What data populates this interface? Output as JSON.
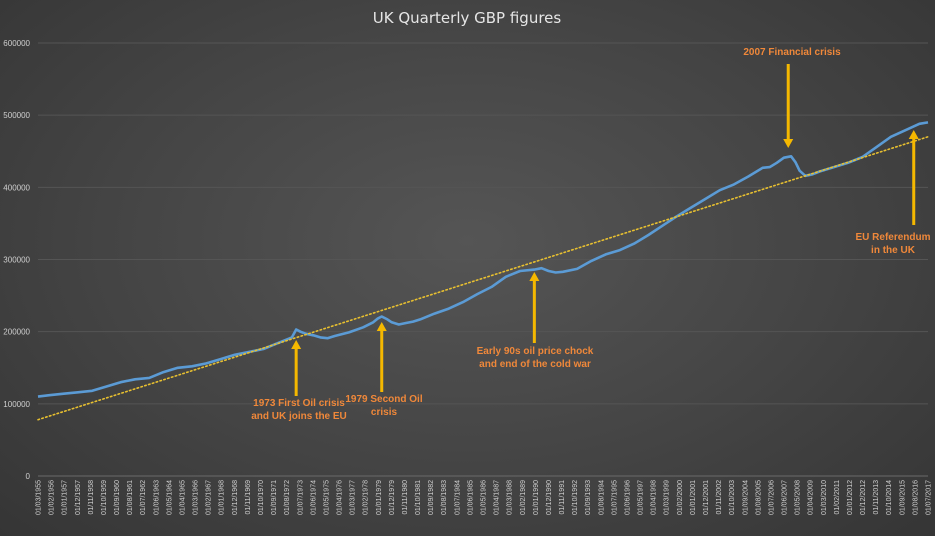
{
  "chart_data": {
    "type": "line",
    "title": "UK Quarterly GBP figures",
    "xlabel": "",
    "ylabel": "",
    "ylim": [
      0,
      600000
    ],
    "yticks": [
      0,
      100000,
      200000,
      300000,
      400000,
      500000,
      600000
    ],
    "grid": "horizontal",
    "legend": "none",
    "x_tick_labels": [
      "01/03/1955",
      "01/02/1956",
      "01/01/1957",
      "01/12/1957",
      "01/11/1958",
      "01/10/1959",
      "01/09/1960",
      "01/08/1961",
      "01/07/1962",
      "01/06/1963",
      "01/05/1964",
      "01/04/1965",
      "01/03/1966",
      "01/02/1967",
      "01/01/1968",
      "01/12/1968",
      "01/11/1969",
      "01/10/1970",
      "01/09/1971",
      "01/08/1972",
      "01/07/1973",
      "01/06/1974",
      "01/05/1975",
      "01/04/1976",
      "01/03/1977",
      "01/02/1978",
      "01/01/1979",
      "01/12/1979",
      "01/11/1980",
      "01/10/1981",
      "01/09/1982",
      "01/08/1983",
      "01/07/1984",
      "01/06/1985",
      "01/05/1986",
      "01/04/1987",
      "01/03/1988",
      "01/02/1989",
      "01/01/1990",
      "01/12/1990",
      "01/11/1991",
      "01/10/1992",
      "01/09/1993",
      "01/08/1994",
      "01/07/1995",
      "01/06/1996",
      "01/05/1997",
      "01/04/1998",
      "01/03/1999",
      "01/02/2000",
      "01/01/2001",
      "01/12/2001",
      "01/11/2002",
      "01/10/2003",
      "01/09/2004",
      "01/08/2005",
      "01/07/2006",
      "01/06/2007",
      "01/05/2008",
      "01/04/2009",
      "01/03/2010",
      "01/02/2011",
      "01/01/2012",
      "01/12/2012",
      "01/11/2013",
      "01/10/2014",
      "01/09/2015",
      "01/08/2016",
      "01/07/2017"
    ],
    "series": [
      {
        "color": "#5b9bd5",
        "x": [
          1955.2,
          1956.0,
          1957.0,
          1958.0,
          1959.0,
          1960.0,
          1961.0,
          1962.0,
          1963.0,
          1964.0,
          1965.0,
          1966.0,
          1967.0,
          1968.0,
          1969.0,
          1970.0,
          1971.0,
          1972.0,
          1972.5,
          1973.0,
          1973.3,
          1973.6,
          1974.0,
          1974.5,
          1975.0,
          1975.5,
          1976.0,
          1977.0,
          1978.0,
          1978.7,
          1979.0,
          1979.3,
          1979.7,
          1980.0,
          1980.5,
          1981.0,
          1981.5,
          1982.0,
          1983.0,
          1984.0,
          1985.0,
          1986.0,
          1987.0,
          1988.0,
          1989.0,
          1990.0,
          1990.5,
          1991.0,
          1991.5,
          1992.0,
          1993.0,
          1994.0,
          1995.0,
          1996.0,
          1997.0,
          1998.0,
          1999.0,
          2000.0,
          2001.0,
          2002.0,
          2003.0,
          2004.0,
          2005.0,
          2006.0,
          2006.5,
          2007.0,
          2007.5,
          2008.0,
          2008.3,
          2008.6,
          2009.0,
          2009.5,
          2010.0,
          2011.0,
          2012.0,
          2013.0,
          2014.0,
          2015.0,
          2016.0,
          2017.0,
          2017.6
        ],
        "y": [
          110000,
          112000,
          114000,
          116000,
          118000,
          124000,
          130000,
          134000,
          136000,
          144000,
          150000,
          152000,
          156000,
          162000,
          168000,
          172000,
          176000,
          184000,
          188000,
          192000,
          203000,
          200000,
          197000,
          195000,
          192000,
          191000,
          194000,
          199000,
          206000,
          213000,
          218000,
          221000,
          217000,
          213000,
          210000,
          212000,
          214000,
          217000,
          225000,
          232000,
          241000,
          252000,
          262000,
          276000,
          284000,
          286000,
          288000,
          284000,
          282000,
          283000,
          287000,
          298000,
          307000,
          313000,
          322000,
          334000,
          347000,
          360000,
          372000,
          384000,
          396000,
          404000,
          415000,
          427000,
          428000,
          434000,
          441000,
          443000,
          435000,
          423000,
          416000,
          418000,
          422000,
          428000,
          434000,
          442000,
          456000,
          470000,
          479000,
          488000,
          490000
        ]
      },
      {
        "color": "#e8c030",
        "style": "dotted",
        "x": [
          1955.2,
          2017.6
        ],
        "y": [
          78000,
          470000
        ]
      }
    ],
    "annotations": [
      {
        "lines": [
          "1973 First Oil crisis",
          "and UK joins the EU"
        ],
        "x": 1973.3,
        "arrow": "up"
      },
      {
        "lines": [
          "1979 Second Oil",
          "crisis"
        ],
        "x": 1979.3,
        "arrow": "up"
      },
      {
        "lines": [
          "Early 90s oil price chock",
          "and end of the cold war"
        ],
        "x": 1990.0,
        "arrow": "up"
      },
      {
        "lines": [
          "2007 Financial crisis"
        ],
        "x": 2007.8,
        "arrow": "down"
      },
      {
        "lines": [
          "EU Referendum",
          "in the UK"
        ],
        "x": 2016.6,
        "arrow": "up"
      }
    ]
  }
}
